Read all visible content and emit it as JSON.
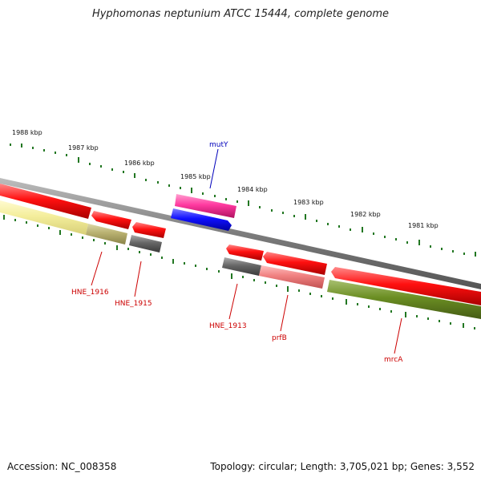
{
  "title": "Hyphomonas neptunium ATCC 15444, complete genome",
  "footer": {
    "accession": "Accession: NC_008358",
    "summary": "Topology: circular; Length: 3,705,021 bp; Genes: 3,552"
  },
  "scale": {
    "unit": "kbp",
    "ticks": [
      "1988 kbp",
      "1987 kbp",
      "1986 kbp",
      "1985 kbp",
      "1984 kbp",
      "1983 kbp",
      "1982 kbp",
      "1981 kbp"
    ]
  },
  "colors": {
    "backbone": "#8a8a8a",
    "cds_strand": "#ff1414",
    "gene_strand": "#6e6e6e",
    "label_red": "#cc0000",
    "label_blue": "#0000bb",
    "tick_green": "#227722",
    "pink_feature": "#ff3aa0",
    "blue_feature": "#1010ff",
    "olive_feature": "#6b8e23",
    "khaki_feature": "#b8b070",
    "pale_yellow_feature": "#f4ee9c",
    "salmon_feature": "#f08080"
  },
  "genes": [
    {
      "label": "mutY",
      "color": "#0000bb"
    },
    {
      "label": "HNE_1916",
      "color": "#cc0000"
    },
    {
      "label": "HNE_1915",
      "color": "#cc0000"
    },
    {
      "label": "HNE_1913",
      "color": "#cc0000"
    },
    {
      "label": "prfB",
      "color": "#cc0000"
    },
    {
      "label": "mrcA",
      "color": "#cc0000"
    }
  ]
}
